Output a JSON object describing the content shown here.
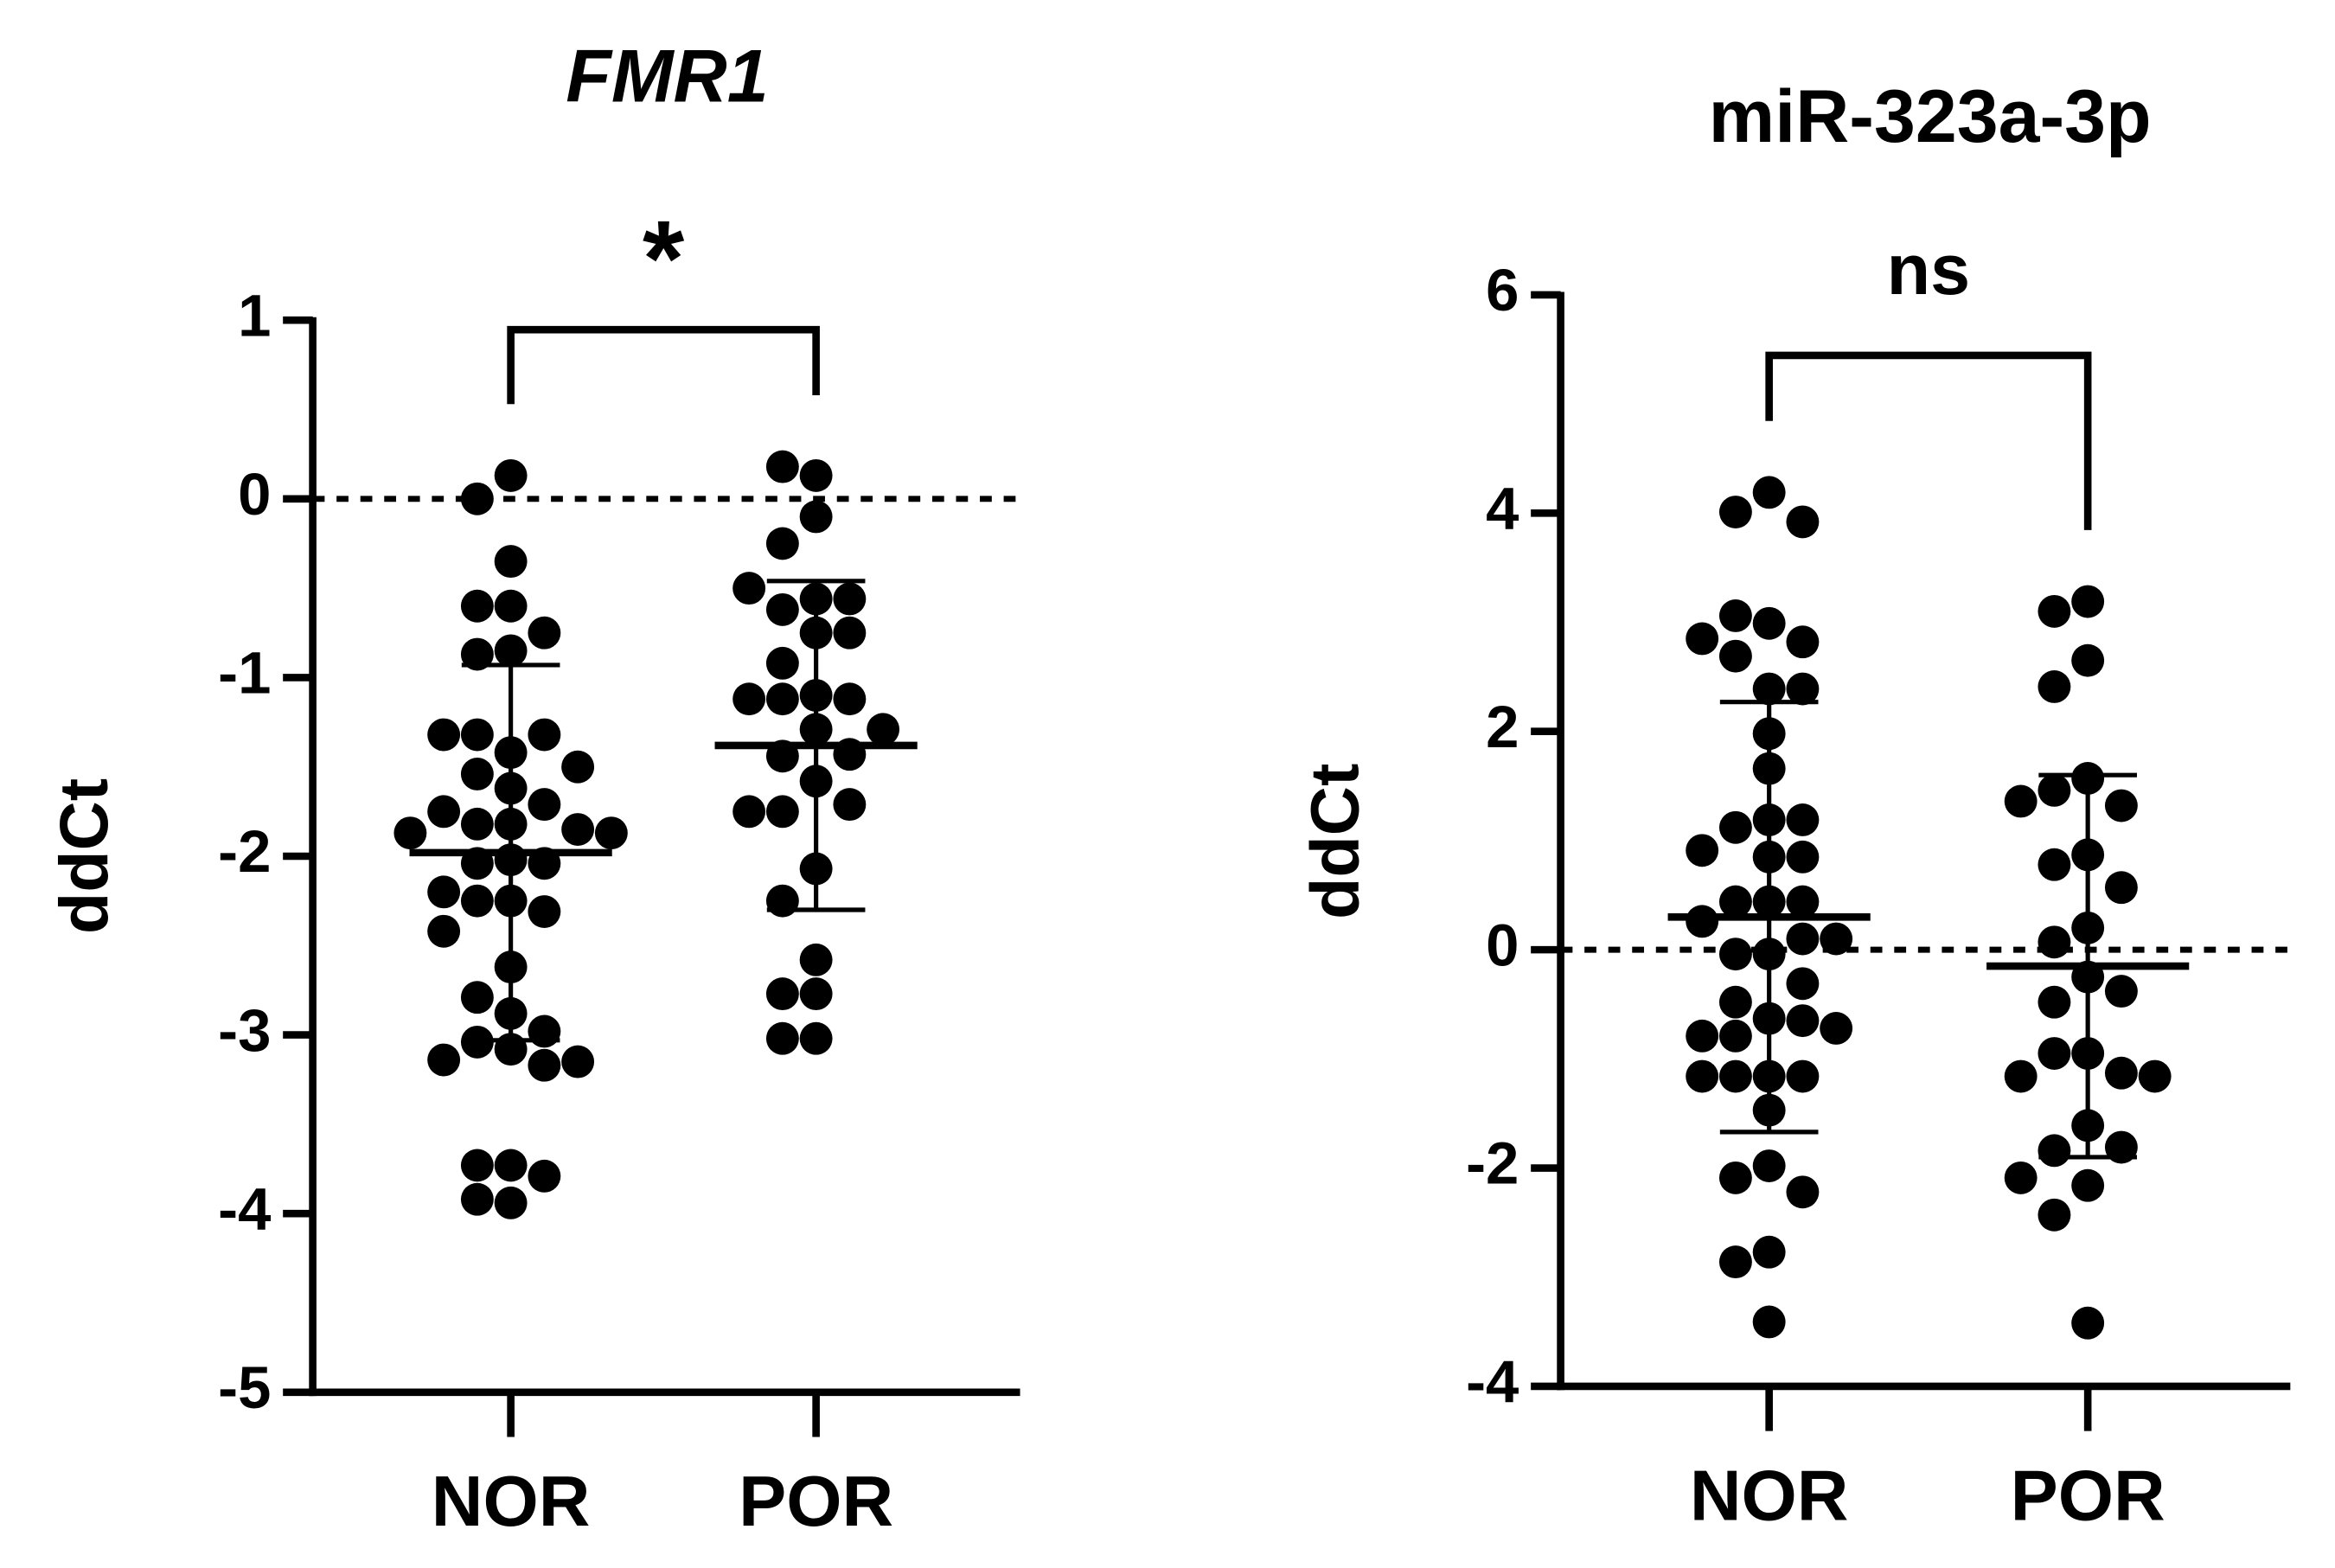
{
  "chart_data": [
    {
      "type": "strip",
      "title": "FMR1",
      "title_italic": true,
      "ylabel": "ddCt",
      "annotation": "*",
      "categories": [
        "NOR",
        "POR"
      ],
      "values": [
        [
          0.13,
          0,
          -0.35,
          -0.6,
          -0.6,
          -0.75,
          -0.85,
          -0.87,
          -1.42,
          -1.32,
          -1.32,
          -1.32,
          -1.5,
          -1.54,
          -1.62,
          -1.71,
          -1.82,
          -1.82,
          -1.75,
          -1.85,
          -1.87,
          -1.87,
          -2.02,
          -2.04,
          -2.04,
          -2.25,
          -2.25,
          -2.2,
          -2.31,
          -2.42,
          -2.62,
          -2.79,
          -2.88,
          -3.04,
          -3.08,
          -2.98,
          -3.17,
          -3.14,
          -3.15,
          -3.73,
          -3.73,
          -3.79,
          -3.94,
          -3.92
        ],
        [
          0.13,
          0.18,
          -0.1,
          -0.25,
          -0.56,
          -0.62,
          -0.56,
          -0.5,
          -0.75,
          -0.75,
          -0.92,
          -1.29,
          -1.12,
          -1.12,
          -1.12,
          -1.1,
          -1.29,
          -1.44,
          -1.43,
          -1.58,
          -1.75,
          -1.71,
          -1.75,
          -2.07,
          -2.25,
          -2.58,
          -2.77,
          -2.77,
          -3.02,
          -3.02
        ]
      ],
      "mean": [
        -1.98,
        -1.38
      ],
      "sd": [
        1.05,
        0.92
      ],
      "reference_line": 0,
      "color": "#000000",
      "ylim": [
        -5,
        1
      ],
      "yticks": [
        -5,
        -4,
        -3,
        -2,
        -1,
        0,
        1
      ]
    },
    {
      "type": "strip",
      "title": "miR-323a-3p",
      "title_italic": false,
      "ylabel": "ddCt",
      "annotation": "ns",
      "categories": [
        "NOR",
        "POR"
      ],
      "values": [
        [
          4.19,
          4.01,
          3.92,
          2.99,
          2.69,
          2.82,
          2.85,
          3.06,
          2.39,
          2.39,
          1.98,
          1.66,
          1.19,
          1.12,
          1.19,
          0.85,
          0.85,
          0.91,
          0.44,
          0.44,
          0.44,
          0.26,
          -0.04,
          -0.04,
          0.1,
          0.1,
          -0.63,
          -0.48,
          -0.31,
          -0.65,
          -0.79,
          -0.79,
          -0.72,
          -1.16,
          -1.16,
          -1.16,
          -1.16,
          -1.47,
          -1.98,
          -2.09,
          -2.22,
          -2.77,
          -2.86,
          -3.41
        ],
        [
          3.19,
          3.1,
          2.65,
          2.41,
          1.57,
          1.46,
          1.32,
          1.36,
          0.87,
          0.78,
          0.57,
          0.2,
          0.07,
          -0.25,
          -0.48,
          -0.38,
          -0.95,
          -0.95,
          -1.13,
          -1.16,
          -1.16,
          -1.61,
          -1.84,
          -1.81,
          -2.16,
          -2.09,
          -2.43,
          -3.42
        ]
      ],
      "mean": [
        0.3,
        -0.15
      ],
      "sd": [
        1.97,
        1.75
      ],
      "reference_line": 0,
      "color": "#000000",
      "ylim": [
        -4,
        6
      ],
      "yticks": [
        -4,
        -2,
        0,
        2,
        4,
        6
      ]
    }
  ]
}
